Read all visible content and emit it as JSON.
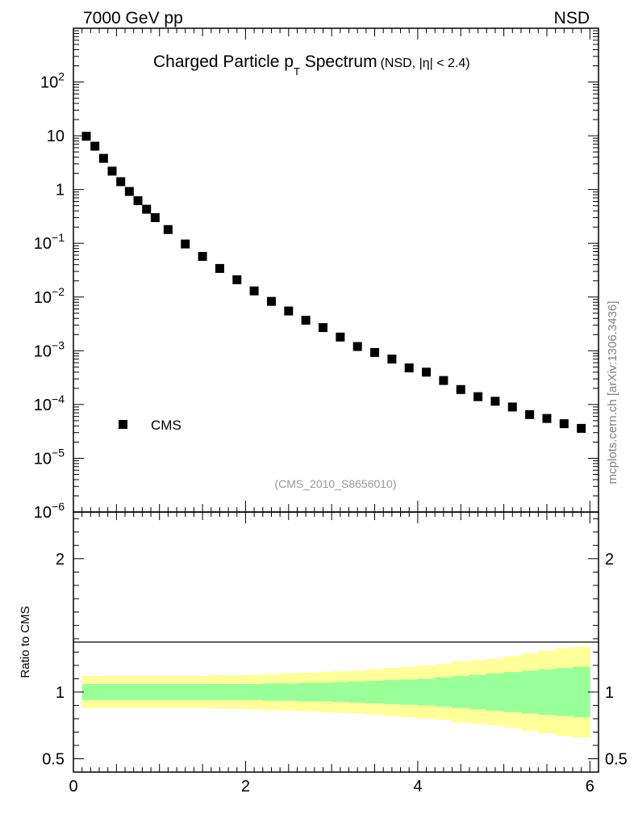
{
  "header": {
    "left": "7000 GeV pp",
    "right": "NSD"
  },
  "watermark": "mcplots.cern.ch [arXiv:1306.3436]",
  "analysis_id": "(CMS_2010_S8656010)",
  "legend": {
    "label": "CMS"
  },
  "colors": {
    "band_outer": "#ffff99",
    "band_inner": "#99ff99",
    "marker": "#000000",
    "axis": "#000000"
  },
  "chart_data": [
    {
      "type": "scatter",
      "title_main": "Charged Particle p",
      "title_sub": "T",
      "title_main2": " Spectrum",
      "title_suffix": "(NSD, |η| < 2.4)",
      "xlim": [
        0,
        6.1
      ],
      "ylim": [
        1e-06,
        1000
      ],
      "yscale": "log",
      "y_tick_labels": [
        "10^-6",
        "10^-5",
        "10^-4",
        "10^-3",
        "10^-2",
        "10^-1",
        "1",
        "10",
        "10^2"
      ],
      "series": [
        {
          "name": "CMS",
          "x": [
            0.15,
            0.25,
            0.35,
            0.45,
            0.55,
            0.65,
            0.75,
            0.85,
            0.95,
            1.1,
            1.3,
            1.5,
            1.7,
            1.9,
            2.1,
            2.3,
            2.5,
            2.7,
            2.9,
            3.1,
            3.3,
            3.5,
            3.7,
            3.9,
            4.1,
            4.3,
            4.5,
            4.7,
            4.9,
            5.1,
            5.3,
            5.5,
            5.7,
            5.9
          ],
          "y": [
            9.8,
            6.4,
            3.8,
            2.2,
            1.4,
            0.92,
            0.62,
            0.43,
            0.3,
            0.18,
            0.097,
            0.057,
            0.034,
            0.021,
            0.013,
            0.0083,
            0.0055,
            0.0037,
            0.0027,
            0.0018,
            0.0012,
            0.00093,
            0.0007,
            0.00048,
            0.0004,
            0.00028,
            0.00019,
            0.00014,
            0.000115,
            9e-05,
            6.5e-05,
            5.5e-05,
            4.4e-05,
            3.6e-05
          ]
        }
      ]
    },
    {
      "type": "area",
      "ylabel": "Ratio to CMS",
      "xlim": [
        0,
        6.1
      ],
      "ylim": [
        0.4,
        2.35
      ],
      "x_tick_labels": [
        "0",
        "2",
        "4",
        "6"
      ],
      "y_tick_labels": [
        "0.5",
        "1",
        "2"
      ],
      "reference_line": 1,
      "bins": [
        {
          "x0": 0.1,
          "x1": 0.2,
          "inner": [
            0.94,
            1.06
          ],
          "outer": [
            0.88,
            1.12
          ]
        },
        {
          "x0": 0.2,
          "x1": 0.3,
          "inner": [
            0.94,
            1.06
          ],
          "outer": [
            0.88,
            1.12
          ]
        },
        {
          "x0": 0.3,
          "x1": 0.4,
          "inner": [
            0.94,
            1.06
          ],
          "outer": [
            0.88,
            1.12
          ]
        },
        {
          "x0": 0.4,
          "x1": 0.5,
          "inner": [
            0.94,
            1.06
          ],
          "outer": [
            0.88,
            1.12
          ]
        },
        {
          "x0": 0.5,
          "x1": 0.6,
          "inner": [
            0.94,
            1.06
          ],
          "outer": [
            0.88,
            1.12
          ]
        },
        {
          "x0": 0.6,
          "x1": 0.7,
          "inner": [
            0.94,
            1.06
          ],
          "outer": [
            0.88,
            1.12
          ]
        },
        {
          "x0": 0.7,
          "x1": 0.8,
          "inner": [
            0.94,
            1.06
          ],
          "outer": [
            0.88,
            1.12
          ]
        },
        {
          "x0": 0.8,
          "x1": 0.9,
          "inner": [
            0.94,
            1.06
          ],
          "outer": [
            0.88,
            1.12
          ]
        },
        {
          "x0": 0.9,
          "x1": 1.0,
          "inner": [
            0.94,
            1.06
          ],
          "outer": [
            0.88,
            1.12
          ]
        },
        {
          "x0": 1.0,
          "x1": 1.2,
          "inner": [
            0.94,
            1.06
          ],
          "outer": [
            0.88,
            1.12
          ]
        },
        {
          "x0": 1.2,
          "x1": 1.4,
          "inner": [
            0.94,
            1.06
          ],
          "outer": [
            0.88,
            1.12
          ]
        },
        {
          "x0": 1.4,
          "x1": 1.6,
          "inner": [
            0.94,
            1.06
          ],
          "outer": [
            0.88,
            1.12
          ]
        },
        {
          "x0": 1.6,
          "x1": 1.8,
          "inner": [
            0.94,
            1.06
          ],
          "outer": [
            0.875,
            1.125
          ]
        },
        {
          "x0": 1.8,
          "x1": 2.0,
          "inner": [
            0.94,
            1.06
          ],
          "outer": [
            0.875,
            1.125
          ]
        },
        {
          "x0": 2.0,
          "x1": 2.2,
          "inner": [
            0.94,
            1.06
          ],
          "outer": [
            0.87,
            1.13
          ]
        },
        {
          "x0": 2.2,
          "x1": 2.4,
          "inner": [
            0.935,
            1.065
          ],
          "outer": [
            0.865,
            1.135
          ]
        },
        {
          "x0": 2.4,
          "x1": 2.6,
          "inner": [
            0.935,
            1.065
          ],
          "outer": [
            0.86,
            1.14
          ]
        },
        {
          "x0": 2.6,
          "x1": 2.8,
          "inner": [
            0.93,
            1.07
          ],
          "outer": [
            0.855,
            1.145
          ]
        },
        {
          "x0": 2.8,
          "x1": 3.0,
          "inner": [
            0.93,
            1.07
          ],
          "outer": [
            0.85,
            1.15
          ]
        },
        {
          "x0": 3.0,
          "x1": 3.2,
          "inner": [
            0.925,
            1.075
          ],
          "outer": [
            0.845,
            1.155
          ]
        },
        {
          "x0": 3.2,
          "x1": 3.4,
          "inner": [
            0.92,
            1.08
          ],
          "outer": [
            0.84,
            1.16
          ]
        },
        {
          "x0": 3.4,
          "x1": 3.6,
          "inner": [
            0.915,
            1.085
          ],
          "outer": [
            0.83,
            1.17
          ]
        },
        {
          "x0": 3.6,
          "x1": 3.8,
          "inner": [
            0.91,
            1.09
          ],
          "outer": [
            0.82,
            1.18
          ]
        },
        {
          "x0": 3.8,
          "x1": 4.0,
          "inner": [
            0.905,
            1.095
          ],
          "outer": [
            0.81,
            1.19
          ]
        },
        {
          "x0": 4.0,
          "x1": 4.2,
          "inner": [
            0.9,
            1.1
          ],
          "outer": [
            0.8,
            1.2
          ]
        },
        {
          "x0": 4.2,
          "x1": 4.4,
          "inner": [
            0.89,
            1.11
          ],
          "outer": [
            0.79,
            1.21
          ]
        },
        {
          "x0": 4.4,
          "x1": 4.6,
          "inner": [
            0.88,
            1.12
          ],
          "outer": [
            0.77,
            1.23
          ]
        },
        {
          "x0": 4.6,
          "x1": 4.8,
          "inner": [
            0.87,
            1.13
          ],
          "outer": [
            0.76,
            1.24
          ]
        },
        {
          "x0": 4.8,
          "x1": 5.0,
          "inner": [
            0.86,
            1.14
          ],
          "outer": [
            0.75,
            1.25
          ]
        },
        {
          "x0": 5.0,
          "x1": 5.2,
          "inner": [
            0.85,
            1.15
          ],
          "outer": [
            0.73,
            1.27
          ]
        },
        {
          "x0": 5.2,
          "x1": 5.4,
          "inner": [
            0.84,
            1.16
          ],
          "outer": [
            0.71,
            1.29
          ]
        },
        {
          "x0": 5.4,
          "x1": 5.6,
          "inner": [
            0.83,
            1.17
          ],
          "outer": [
            0.69,
            1.31
          ]
        },
        {
          "x0": 5.6,
          "x1": 5.8,
          "inner": [
            0.82,
            1.18
          ],
          "outer": [
            0.67,
            1.33
          ]
        },
        {
          "x0": 5.8,
          "x1": 6.0,
          "inner": [
            0.81,
            1.19
          ],
          "outer": [
            0.66,
            1.34
          ]
        }
      ]
    }
  ]
}
